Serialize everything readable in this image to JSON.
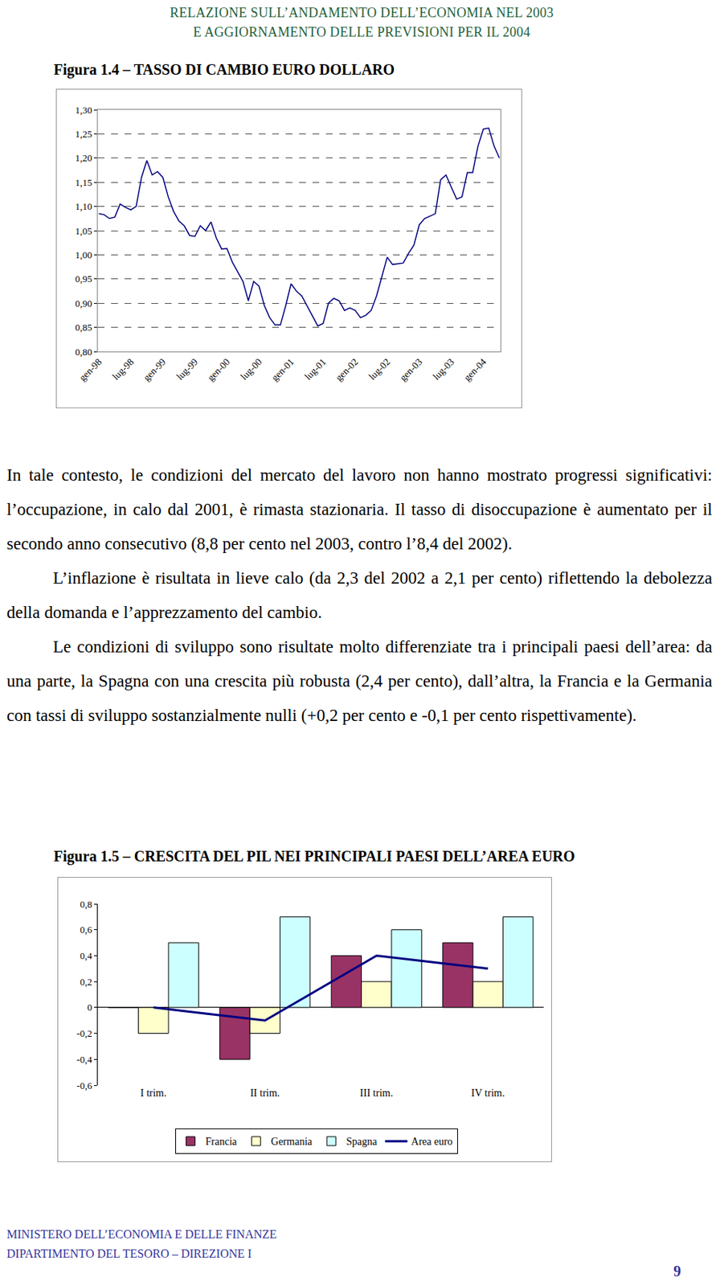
{
  "header": {
    "lines": [
      "RELAZIONE SULL’ANDAMENTO DELL’ECONOMIA NEL 2003",
      "E AGGIORNAMENTO DELLE PREVISIONI PER IL 2004"
    ]
  },
  "chart_data": [
    {
      "type": "line",
      "title": "Figura 1.4 – TASSO DI CAMBIO EURO DOLLARO",
      "categories": [
        "gen-98",
        null,
        null,
        null,
        null,
        null,
        "lug-98",
        null,
        null,
        null,
        null,
        null,
        "gen-99",
        null,
        null,
        null,
        null,
        null,
        "lug-99",
        null,
        null,
        null,
        null,
        null,
        "gen-00",
        null,
        null,
        null,
        null,
        null,
        "lug-00",
        null,
        null,
        null,
        null,
        null,
        "gen-01",
        null,
        null,
        null,
        null,
        null,
        "lug-01",
        null,
        null,
        null,
        null,
        null,
        "gen-02",
        null,
        null,
        null,
        null,
        null,
        "lug-02",
        null,
        null,
        null,
        null,
        null,
        "gen-03",
        null,
        null,
        null,
        null,
        null,
        "lug-03",
        null,
        null,
        null,
        null,
        null,
        "gen-04",
        null,
        null,
        null
      ],
      "values": [
        1.085,
        1.083,
        1.075,
        1.078,
        1.105,
        1.098,
        1.093,
        1.1,
        1.16,
        1.195,
        1.165,
        1.172,
        1.16,
        1.12,
        1.09,
        1.07,
        1.06,
        1.04,
        1.038,
        1.06,
        1.05,
        1.068,
        1.035,
        1.012,
        1.013,
        0.985,
        0.965,
        0.945,
        0.905,
        0.945,
        0.935,
        0.895,
        0.87,
        0.855,
        0.855,
        0.895,
        0.94,
        0.925,
        0.915,
        0.895,
        0.875,
        0.853,
        0.858,
        0.9,
        0.91,
        0.905,
        0.885,
        0.89,
        0.885,
        0.87,
        0.875,
        0.885,
        0.915,
        0.955,
        0.995,
        0.98,
        0.982,
        0.983,
        1.003,
        1.02,
        1.062,
        1.075,
        1.08,
        1.085,
        1.155,
        1.165,
        1.14,
        1.115,
        1.12,
        1.17,
        1.17,
        1.225,
        1.26,
        1.262,
        1.225,
        1.2
      ],
      "color": "#000080",
      "ylim": [
        0.8,
        1.3
      ],
      "yticks": [
        {
          "value": 0.8,
          "label": "0,80"
        },
        {
          "value": 0.85,
          "label": "0,85"
        },
        {
          "value": 0.9,
          "label": "0,90"
        },
        {
          "value": 0.95,
          "label": "0,95"
        },
        {
          "value": 1.0,
          "label": "1,00"
        },
        {
          "value": 1.05,
          "label": "1,05"
        },
        {
          "value": 1.1,
          "label": "1,10"
        },
        {
          "value": 1.15,
          "label": "1,15"
        },
        {
          "value": 1.2,
          "label": "1,20"
        },
        {
          "value": 1.25,
          "label": "1,25"
        },
        {
          "value": 1.3,
          "label": "1,30"
        }
      ],
      "grid": true
    },
    {
      "type": "bar",
      "title": "Figura 1.5 – CRESCITA DEL PIL NEI PRINCIPALI PAESI DELL’AREA EURO",
      "categories": [
        "I trim.",
        "II trim.",
        "III trim.",
        "IV trim."
      ],
      "series": [
        {
          "name": "Francia",
          "type": "bar",
          "color": "#993366",
          "values": [
            0,
            -0.4,
            0.4,
            0.5
          ]
        },
        {
          "name": "Germania",
          "type": "bar",
          "color": "#ffffcc",
          "values": [
            -0.2,
            -0.2,
            0.2,
            0.2
          ]
        },
        {
          "name": "Spagna",
          "type": "bar",
          "color": "#ccffff",
          "values": [
            0.5,
            0.7,
            0.6,
            0.7
          ]
        },
        {
          "name": "Area euro",
          "type": "line",
          "color": "#000080",
          "values": [
            0,
            -0.1,
            0.4,
            0.3
          ]
        }
      ],
      "ylim": [
        -0.6,
        0.8
      ],
      "yticks": [
        {
          "value": -0.6,
          "label": "-0,6"
        },
        {
          "value": -0.4,
          "label": "-0,4"
        },
        {
          "value": -0.2,
          "label": "-0,2"
        },
        0,
        {
          "value": 0.2,
          "label": "0,2"
        },
        {
          "value": 0.4,
          "label": "0,4"
        },
        {
          "value": 0.6,
          "label": "0,6"
        },
        {
          "value": 0.8,
          "label": "0,8"
        }
      ],
      "legend": "bottom",
      "grid": false
    }
  ],
  "paragraphs": [
    "In tale contesto, le condizioni del mercato del lavoro non hanno mostrato progressi significativi: l’occupazione, in calo dal 2001, è rimasta stazionaria. Il tasso di disoccupazione è aumentato per il secondo anno consecutivo (8,8 per cento nel 2003, contro l’8,4 del 2002).",
    "L’inflazione è risultata in lieve calo (da 2,3 del 2002 a 2,1 per cento) riflettendo la debolezza della domanda e l’apprezzamento del cambio.",
    "Le condizioni di sviluppo sono risultate molto differenziate tra i principali paesi dell’area: da una parte, la Spagna con una crescita più robusta (2,4 per cento), dall’altra, la Francia e la Germania con tassi di sviluppo sostanzialmente nulli (+0,2 per cento e -0,1 per cento rispettivamente)."
  ],
  "footer": {
    "lines": [
      "MINISTERO DELL’ECONOMIA E DELLE FINANZE",
      "DIPARTIMENTO DEL TESORO – DIREZIONE I"
    ],
    "page_number": "9"
  }
}
